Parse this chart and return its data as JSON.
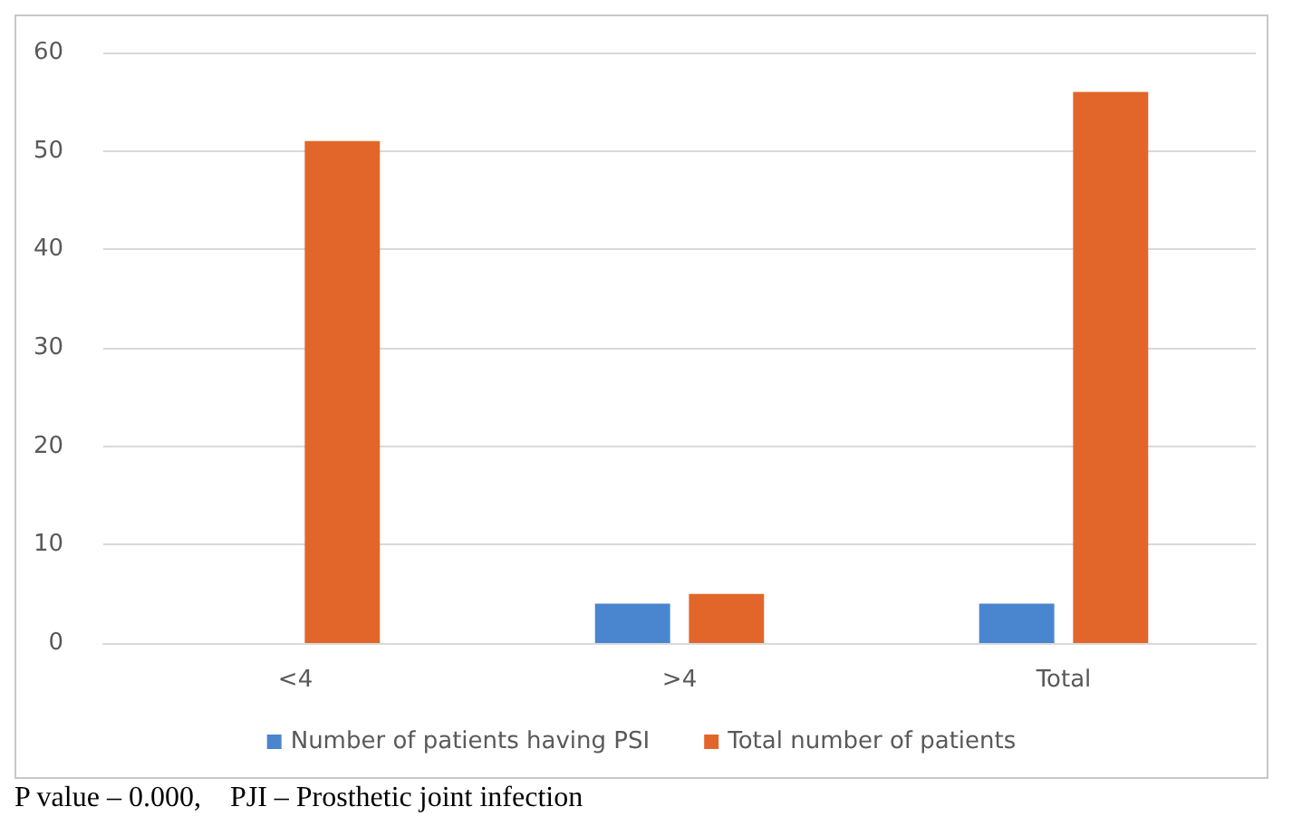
{
  "chart_data": {
    "type": "bar",
    "categories": [
      "<4",
      ">4",
      "Total"
    ],
    "series": [
      {
        "name": "Number of patients having PSI",
        "color": "#4a86d0",
        "values": [
          0,
          4,
          4
        ]
      },
      {
        "name": "Total number of patients",
        "color": "#e2662a",
        "values": [
          51,
          5,
          56
        ]
      }
    ],
    "ylim": [
      0,
      60
    ],
    "yticks": [
      0,
      10,
      20,
      30,
      40,
      50,
      60
    ],
    "grid": "y",
    "legend": "bottom",
    "annotations": [
      "P value – 0.000,    PJI – Prosthetic joint infection"
    ]
  }
}
